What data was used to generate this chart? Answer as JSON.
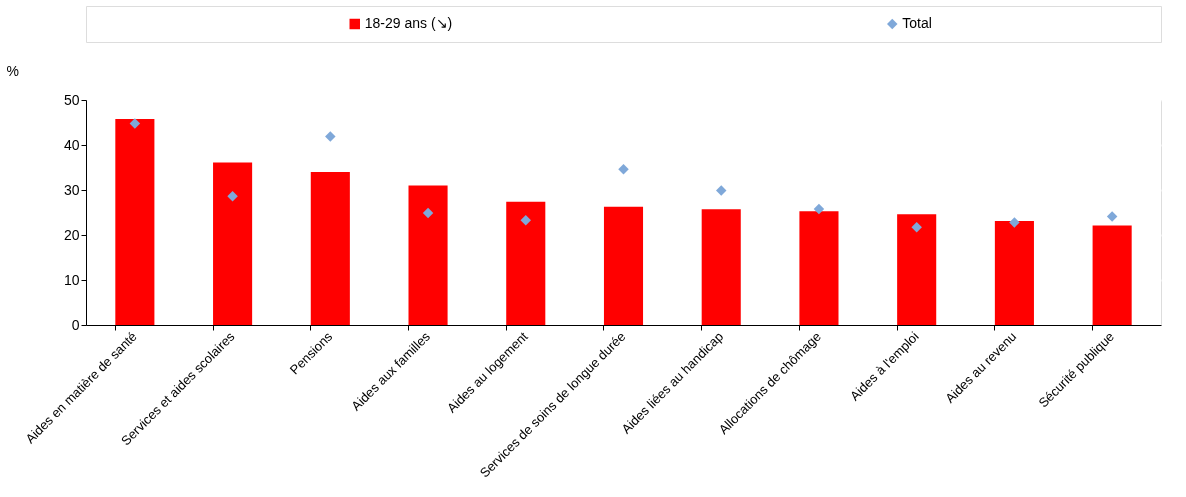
{
  "chart_data": {
    "type": "bar",
    "ylabel": "%",
    "categories": [
      "Aides en matière de santé",
      "Services et aides scolaires",
      "Pensions",
      "Aides aux familles",
      "Aides au logement",
      "Services de soins de longue durée",
      "Aides liées au handicap",
      "Allocations de chômage",
      "Aides à l'emploi",
      "Aides au revenu",
      "Sécurité publique"
    ],
    "series": [
      {
        "name": "18-29 ans (↘)",
        "color": "#ff0000",
        "values": [
          45.8,
          36.1,
          34.0,
          31.0,
          27.4,
          26.3,
          25.7,
          25.3,
          24.6,
          23.1,
          22.1
        ]
      },
      {
        "name": "Total",
        "type": "scatter",
        "color": "#7fa8d9",
        "values": [
          44.8,
          28.6,
          41.9,
          24.9,
          23.3,
          34.6,
          29.9,
          25.8,
          21.7,
          22.8,
          24.1
        ]
      }
    ],
    "marker": "diamond",
    "ylim": [
      0,
      50
    ],
    "yticks": [
      0,
      10,
      20,
      30,
      40,
      50
    ],
    "grid": true,
    "legend": "top"
  }
}
